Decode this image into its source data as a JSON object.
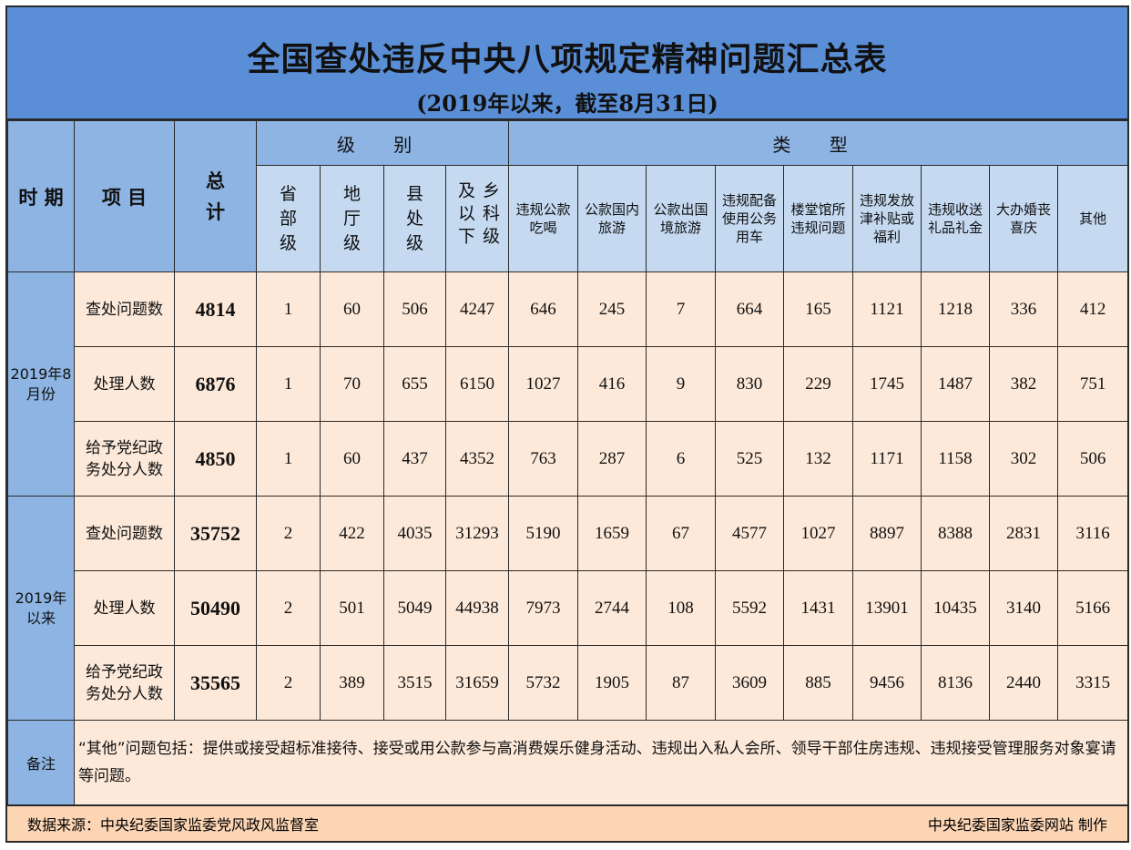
{
  "title": "全国查处违反中央八项规定精神问题汇总表",
  "subtitle": "(2019年以来，截至8月31日)",
  "colors": {
    "title_bg": "#5a8fd8",
    "header_bg": "#8db4e2",
    "subheader_bg": "#c5d9f1",
    "cell_bg": "#fde9d9",
    "footer_bg": "#fcd5b4"
  },
  "headers": {
    "period": "时 期",
    "item": "项 目",
    "total": "总计",
    "level_group": "级 别",
    "type_group": "类 型",
    "levels": [
      "省部级",
      "地厅级",
      "县处级",
      "乡科级及以下"
    ],
    "types": [
      "违规公款吃喝",
      "公款国内旅游",
      "公款出国境旅游",
      "违规配备使用公务用车",
      "楼堂馆所违规问题",
      "违规发放津补贴或福利",
      "违规收送礼品礼金",
      "大办婚丧喜庆",
      "其他"
    ]
  },
  "groups": [
    {
      "period": "2019年8月份",
      "rows": [
        {
          "item": "查处问题数",
          "total": "4814",
          "levels": [
            "1",
            "60",
            "506",
            "4247"
          ],
          "types": [
            "646",
            "245",
            "7",
            "664",
            "165",
            "1121",
            "1218",
            "336",
            "412"
          ]
        },
        {
          "item": "处理人数",
          "total": "6876",
          "levels": [
            "1",
            "70",
            "655",
            "6150"
          ],
          "types": [
            "1027",
            "416",
            "9",
            "830",
            "229",
            "1745",
            "1487",
            "382",
            "751"
          ]
        },
        {
          "item": "给予党纪政务处分人数",
          "total": "4850",
          "levels": [
            "1",
            "60",
            "437",
            "4352"
          ],
          "types": [
            "763",
            "287",
            "6",
            "525",
            "132",
            "1171",
            "1158",
            "302",
            "506"
          ]
        }
      ]
    },
    {
      "period": "2019年以来",
      "rows": [
        {
          "item": "查处问题数",
          "total": "35752",
          "levels": [
            "2",
            "422",
            "4035",
            "31293"
          ],
          "types": [
            "5190",
            "1659",
            "67",
            "4577",
            "1027",
            "8897",
            "8388",
            "2831",
            "3116"
          ]
        },
        {
          "item": "处理人数",
          "total": "50490",
          "levels": [
            "2",
            "501",
            "5049",
            "44938"
          ],
          "types": [
            "7973",
            "2744",
            "108",
            "5592",
            "1431",
            "13901",
            "10435",
            "3140",
            "5166"
          ]
        },
        {
          "item": "给予党纪政务处分人数",
          "total": "35565",
          "levels": [
            "2",
            "389",
            "3515",
            "31659"
          ],
          "types": [
            "5732",
            "1905",
            "87",
            "3609",
            "885",
            "9456",
            "8136",
            "2440",
            "3315"
          ]
        }
      ]
    }
  ],
  "notes": {
    "label": "备注",
    "text": "“其他”问题包括：提供或接受超标准接待、接受或用公款参与高消费娱乐健身活动、违规出入私人会所、领导干部住房违规、违规接受管理服务对象宴请等问题。"
  },
  "footer": {
    "source": "数据来源：中央纪委国家监委党风政风监督室",
    "credit": "中央纪委国家监委网站 制作"
  }
}
